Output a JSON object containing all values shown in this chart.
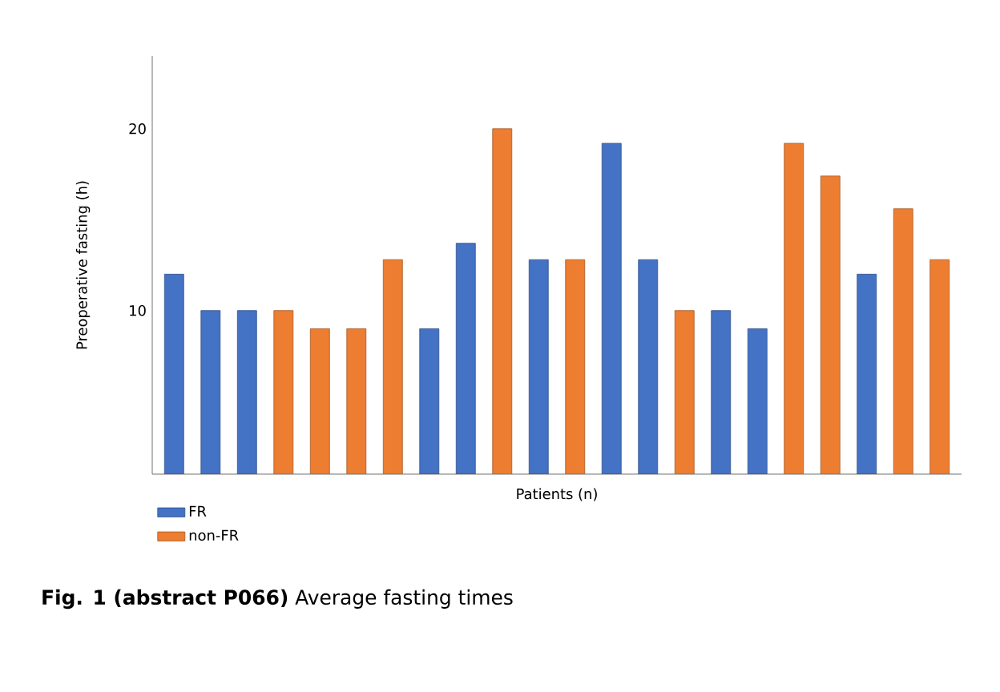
{
  "chart_data": {
    "type": "bar",
    "title": "**Fig. 1 (abstract P066)** Average fasting times",
    "xlabel": "Patients (n)",
    "ylabel": "Preoperative fasting (h)",
    "categories": [
      null,
      null,
      null,
      null,
      null,
      null,
      null,
      null,
      null,
      null,
      null,
      null,
      null,
      null,
      null,
      null,
      null,
      null,
      null,
      null,
      null,
      null
    ],
    "series": [
      {
        "name": "FR",
        "color": "#4472c4",
        "values": [
          12,
          10,
          10,
          null,
          null,
          null,
          null,
          9,
          13.7,
          null,
          12.8,
          null,
          19.2,
          12.8,
          null,
          10,
          9,
          null,
          null,
          12,
          null,
          null
        ]
      },
      {
        "name": "non-FR",
        "color": "#ed7d31",
        "values": [
          null,
          null,
          null,
          10,
          9,
          9,
          12.8,
          null,
          null,
          20,
          null,
          12.8,
          null,
          null,
          10,
          null,
          null,
          19.2,
          17.4,
          null,
          15.6,
          12.8
        ]
      }
    ],
    "ylim": [
      1,
      24
    ],
    "yticks": [
      10,
      20
    ],
    "legend": "bottom left"
  }
}
